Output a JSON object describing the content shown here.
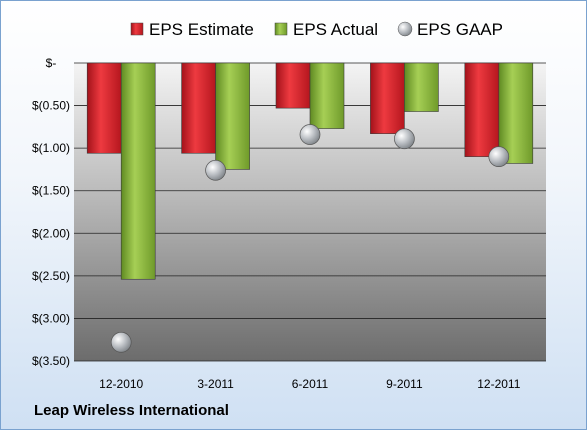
{
  "chart_data": {
    "type": "bar",
    "categories": [
      "12-2010",
      "3-2011",
      "6-2011",
      "9-2011",
      "12-2011"
    ],
    "series": [
      {
        "name": "EPS Estimate",
        "kind": "bar",
        "color": "#e8232f",
        "values": [
          -1.06,
          -1.06,
          -0.53,
          -0.83,
          -1.1
        ]
      },
      {
        "name": "EPS Actual",
        "kind": "bar",
        "color": "#8fbd3e",
        "values": [
          -2.54,
          -1.25,
          -0.77,
          -0.57,
          -1.18
        ]
      },
      {
        "name": "EPS GAAP",
        "kind": "marker",
        "color": "#b8bcc2",
        "values": [
          -3.28,
          -1.26,
          -0.84,
          -0.89,
          -1.1
        ]
      }
    ],
    "yticks": [
      {
        "value": 0,
        "label": "$-"
      },
      {
        "value": -0.5,
        "label": "$(0.50)"
      },
      {
        "value": -1.0,
        "label": "$(1.00)"
      },
      {
        "value": -1.5,
        "label": "$(1.50)"
      },
      {
        "value": -2.0,
        "label": "$(2.00)"
      },
      {
        "value": -2.5,
        "label": "$(2.50)"
      },
      {
        "value": -3.0,
        "label": "$(3.00)"
      },
      {
        "value": -3.5,
        "label": "$(3.50)"
      }
    ],
    "ylim": [
      -3.5,
      0
    ],
    "grid": true,
    "legend": "top"
  },
  "company": "Leap Wireless International"
}
